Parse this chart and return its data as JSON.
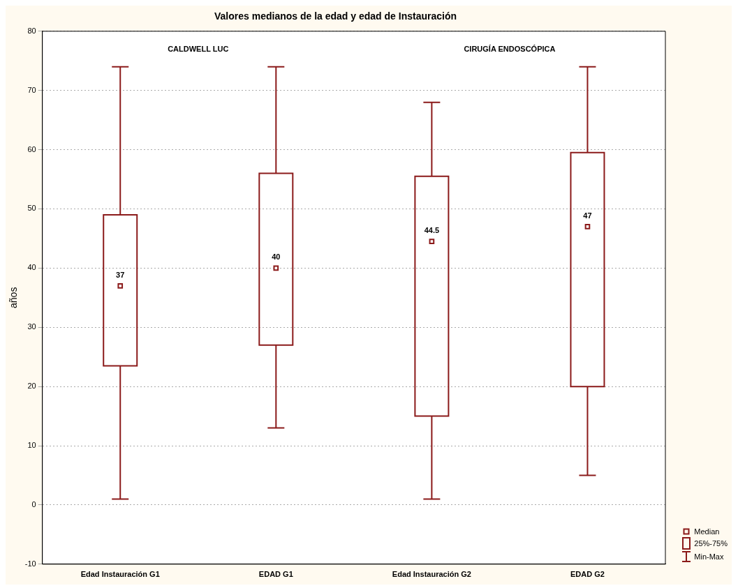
{
  "chart_data": {
    "type": "box",
    "title": "Valores medianos de la edad y edad de Instauración",
    "ylabel": "años",
    "categories": [
      "Edad Instauración G1",
      "EDAD G1",
      "Edad Instauración G2",
      "EDAD G2"
    ],
    "series": [
      {
        "color": "#8b1a1a",
        "boxes": [
          {
            "low": 1,
            "q1": 23.5,
            "median": 37,
            "q3": 49,
            "high": 74
          },
          {
            "low": 13,
            "q1": 27,
            "median": 40,
            "q3": 56,
            "high": 74
          },
          {
            "low": 1,
            "q1": 15,
            "median": 44.5,
            "q3": 55.5,
            "high": 68
          },
          {
            "low": 5,
            "q1": 20,
            "median": 47,
            "q3": 59.5,
            "high": 74
          }
        ],
        "value_labels": [
          "37",
          "40",
          "44.5",
          "47"
        ]
      }
    ],
    "ylim": [
      -10,
      80
    ],
    "yticks": [
      -10,
      0,
      10,
      20,
      30,
      40,
      50,
      60,
      70,
      80
    ],
    "grid": "y",
    "marker": "square",
    "annotations": [
      "CALDWELL LUC",
      "CIRUGÍA ENDOSCÓPICA",
      "Median",
      "25%-75%",
      "Min-Max"
    ]
  }
}
